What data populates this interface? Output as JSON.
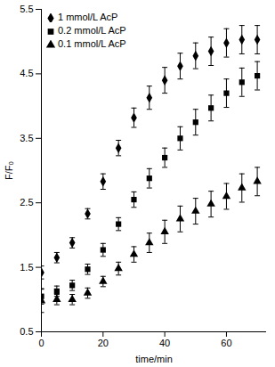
{
  "chart_data": {
    "type": "scatter",
    "x_label": "time/min",
    "y_label": "F/F₀",
    "x": [
      0,
      5,
      10,
      15,
      20,
      25,
      30,
      35,
      40,
      45,
      50,
      55,
      60,
      65,
      70
    ],
    "series": [
      {
        "name": "1 mmol/L AcP",
        "color": "#000000",
        "marker": "diamond",
        "values": [
          1.42,
          1.65,
          1.88,
          2.33,
          2.83,
          3.35,
          3.82,
          4.13,
          4.4,
          4.62,
          4.78,
          4.85,
          4.98,
          5.03,
          5.03
        ],
        "errors": [
          0.1,
          0.08,
          0.08,
          0.08,
          0.12,
          0.12,
          0.15,
          0.18,
          0.2,
          0.2,
          0.2,
          0.22,
          0.22,
          0.22,
          0.22
        ]
      },
      {
        "name": "0.2 mmol/L AcP",
        "color": "#000000",
        "marker": "square",
        "values": [
          1.05,
          1.13,
          1.22,
          1.47,
          1.77,
          2.17,
          2.55,
          2.88,
          3.2,
          3.5,
          3.75,
          3.97,
          4.2,
          4.37,
          4.47
        ],
        "errors": [
          0.12,
          0.08,
          0.08,
          0.08,
          0.1,
          0.1,
          0.12,
          0.15,
          0.15,
          0.18,
          0.2,
          0.2,
          0.22,
          0.22,
          0.22
        ]
      },
      {
        "name": "0.1 mmol/L AcP",
        "color": "#000000",
        "marker": "triangle",
        "values": [
          0.98,
          1.0,
          1.0,
          1.1,
          1.28,
          1.48,
          1.7,
          1.88,
          2.05,
          2.25,
          2.37,
          2.48,
          2.6,
          2.73,
          2.83
        ],
        "errors": [
          0.18,
          0.08,
          0.08,
          0.08,
          0.08,
          0.1,
          0.12,
          0.15,
          0.18,
          0.2,
          0.2,
          0.2,
          0.2,
          0.22,
          0.22
        ]
      }
    ],
    "xlim": [
      0,
      73
    ],
    "xticks": [
      0,
      20,
      40,
      60
    ],
    "ylim": [
      0.5,
      5.5
    ],
    "yticks": [
      0.5,
      1.5,
      2.5,
      3.5,
      4.5,
      5.5
    ],
    "legend": "top-left",
    "grid": false
  }
}
